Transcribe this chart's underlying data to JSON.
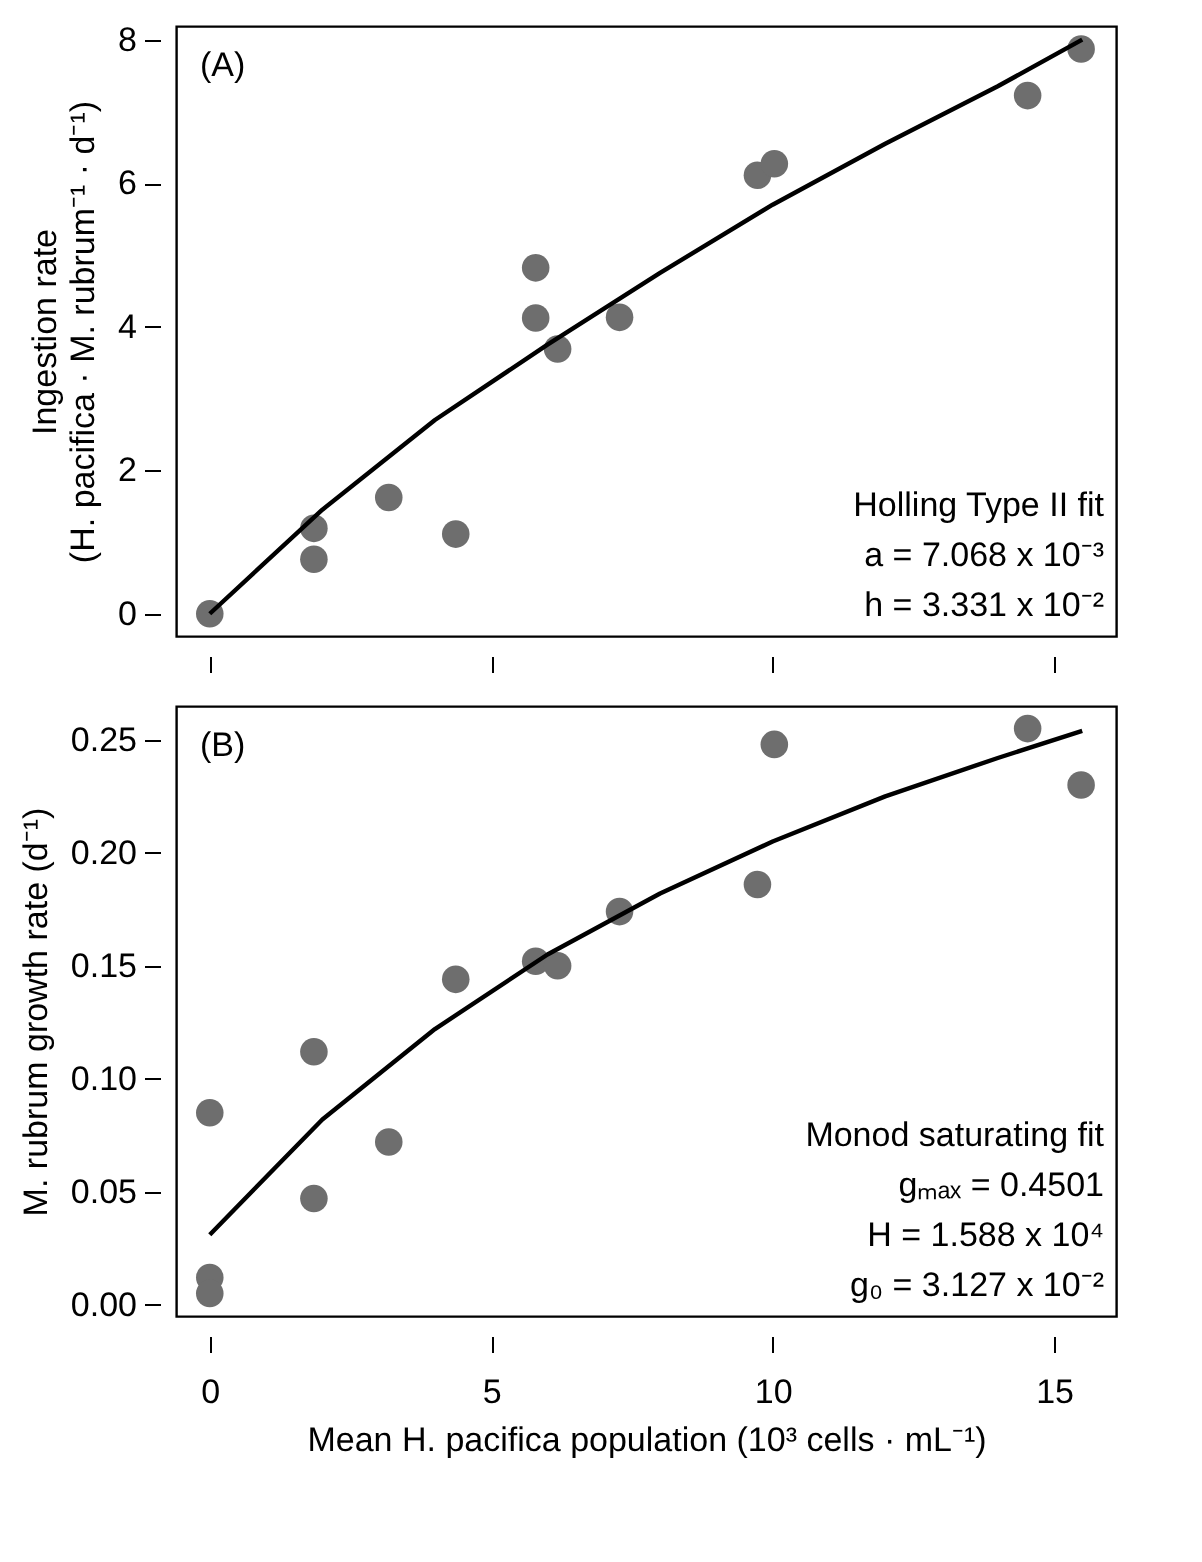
{
  "chart_data": [
    {
      "type": "scatter",
      "ylabel": "Ingestion rate\n(H. pacifica · M. rubrum⁻¹ · d⁻¹)",
      "xlim": [
        -0.6,
        16.1
      ],
      "xticks": [
        0,
        5,
        10,
        15
      ],
      "ylim": [
        -0.31,
        8.19
      ],
      "yticks": [
        0,
        2,
        4,
        6,
        8
      ],
      "tick_labels": "y",
      "grid": false,
      "annotations": [
        "(A)",
        "Holling Type II fit",
        "a = 7.068 x 10⁻³",
        "h = 3.331 x 10⁻²"
      ],
      "series": [
        {
          "marker": "circle",
          "color": "#6e6e6e",
          "x": [
            0,
            1.85,
            1.85,
            3.18,
            4.37,
            5.79,
            5.79,
            6.18,
            7.28,
            9.73,
            10.03,
            14.53,
            15.48
          ],
          "values": [
            0,
            1.19,
            0.76,
            1.62,
            1.11,
            4.82,
            4.12,
            3.69,
            4.13,
            6.11,
            6.27,
            7.22,
            7.87
          ]
        },
        {
          "type": "line",
          "line_style": "solid",
          "color": "#000000",
          "x": [
            0,
            2,
            4,
            6,
            8,
            10,
            12,
            14,
            15.5
          ],
          "values": [
            0,
            1.45,
            2.7,
            3.75,
            4.75,
            5.7,
            6.55,
            7.35,
            8.0
          ]
        }
      ]
    },
    {
      "type": "scatter",
      "xlabel": "Mean H. pacifica population (10³ cells · mL⁻¹)",
      "ylabel": "M. rubrum growth rate (d⁻¹)",
      "xlim": [
        -0.6,
        16.1
      ],
      "xticks": [
        0,
        5,
        10,
        15
      ],
      "ylim": [
        -0.005,
        0.265
      ],
      "yticks": [
        {
          "value": 0,
          "label": "0.00"
        },
        0.05,
        {
          "value": 0.1,
          "label": "0.10"
        },
        0.15,
        {
          "value": 0.2,
          "label": "0.20"
        },
        0.25
      ],
      "grid": false,
      "annotations": [
        "(B)",
        "Monod saturating fit",
        "gₘₐₓ = 0.4501",
        "H = 1.588 x 10⁴",
        "g₀ = 3.127 x 10⁻²"
      ],
      "series": [
        {
          "marker": "circle",
          "color": "#6e6e6e",
          "x": [
            0,
            0,
            0,
            1.85,
            1.85,
            3.18,
            4.37,
            5.79,
            6.18,
            7.28,
            9.73,
            10.03,
            14.53,
            15.48
          ],
          "values": [
            0.085,
            0.012,
            0.005,
            0.112,
            0.047,
            0.072,
            0.144,
            0.152,
            0.15,
            0.174,
            0.186,
            0.248,
            0.255,
            0.23
          ]
        },
        {
          "type": "line",
          "line_style": "solid",
          "color": "#000000",
          "x": [
            0,
            2,
            4,
            6,
            8,
            10,
            12,
            14,
            15.5
          ],
          "values": [
            0.031,
            0.082,
            0.122,
            0.155,
            0.182,
            0.205,
            0.225,
            0.242,
            0.254
          ]
        }
      ]
    }
  ]
}
